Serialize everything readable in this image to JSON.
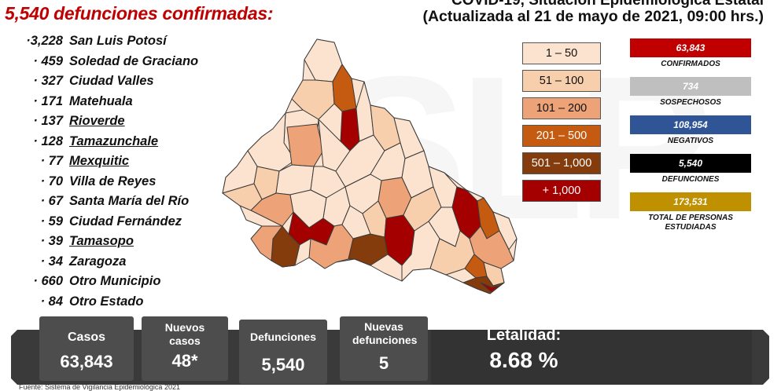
{
  "headline": "5,540 defunciones confirmadas:",
  "title": {
    "line1": "COVID-19, Situación Epidemiológica Estatal",
    "line2": "(Actualizada al 21 de mayo de 2021, 09:00 hrs.)"
  },
  "municipalities": [
    {
      "count": "·3,228",
      "name": "San Luis Potosí",
      "underline": false
    },
    {
      "count": "· 459",
      "name": "Soledad de Graciano",
      "underline": false
    },
    {
      "count": "· 327",
      "name": "Ciudad Valles",
      "underline": false
    },
    {
      "count": "· 171",
      "name": "Matehuala",
      "underline": false
    },
    {
      "count": "· 137",
      "name": "Rioverde",
      "underline": true
    },
    {
      "count": "· 128",
      "name": "Tamazunchale",
      "underline": true
    },
    {
      "count": "· 77",
      "name": "Mexquitic",
      "underline": true
    },
    {
      "count": "· 70",
      "name": "Villa de Reyes",
      "underline": false
    },
    {
      "count": "· 67",
      "name": "Santa María del Río",
      "underline": false
    },
    {
      "count": "· 59",
      "name": "Ciudad Fernández",
      "underline": false
    },
    {
      "count": "· 39",
      "name": "Tamasopo",
      "underline": true
    },
    {
      "count": "· 34",
      "name": "Zaragoza",
      "underline": false
    },
    {
      "count": "· 660",
      "name": "Otro Municipio",
      "underline": false
    },
    {
      "count": "· 84",
      "name": "Otro Estado",
      "underline": false
    }
  ],
  "legend": [
    {
      "label": "1 – 50",
      "color": "#fbe3d0",
      "text_color": "#111111"
    },
    {
      "label": "51 – 100",
      "color": "#f8cfad",
      "text_color": "#111111"
    },
    {
      "label": "101 – 200",
      "color": "#eda377",
      "text_color": "#111111"
    },
    {
      "label": "201 – 500",
      "color": "#c55a11",
      "text_color": "#ffffff"
    },
    {
      "label": "501 – 1,000",
      "color": "#843c0c",
      "text_color": "#ffffff"
    },
    {
      "label": "+ 1,000",
      "color": "#a50000",
      "text_color": "#ffffff"
    }
  ],
  "stats": [
    {
      "value": "63,843",
      "label": "CONFIRMADOS",
      "color": "#c00000",
      "text_color": "#ffffff"
    },
    {
      "value": "734",
      "label": "SOSPECHOSOS",
      "color": "#bfbfbf",
      "text_color": "#ffffff"
    },
    {
      "value": "108,954",
      "label": "NEGATIVOS",
      "color": "#2f5597",
      "text_color": "#ffffff"
    },
    {
      "value": "5,540",
      "label": "DEFUNCIONES",
      "color": "#000000",
      "text_color": "#ffffff"
    },
    {
      "value": "173,531",
      "label": "TOTAL DE PERSONAS ESTUDIADAS",
      "color": "#bf9000",
      "text_color": "#ffffff"
    }
  ],
  "cards": {
    "casos": {
      "title": "Casos",
      "value": "63,843"
    },
    "nuevos": {
      "title": "Nuevos casos",
      "value": "48*"
    },
    "defunciones": {
      "title": "Defunciones",
      "value": "5,540"
    },
    "nuevas_def": {
      "title": "Nuevas defunciones",
      "value": "5"
    },
    "letalidad": {
      "title": "Letalidad:",
      "value": "8.68 %"
    }
  },
  "footnote": "Fuente: Sistema de Vigilancia Epidemiológica 2021",
  "watermark": "SLP",
  "colors": {
    "bar_dark": "#3a3a3a",
    "card": "#4d4d4d",
    "headline_red": "#c00000"
  }
}
